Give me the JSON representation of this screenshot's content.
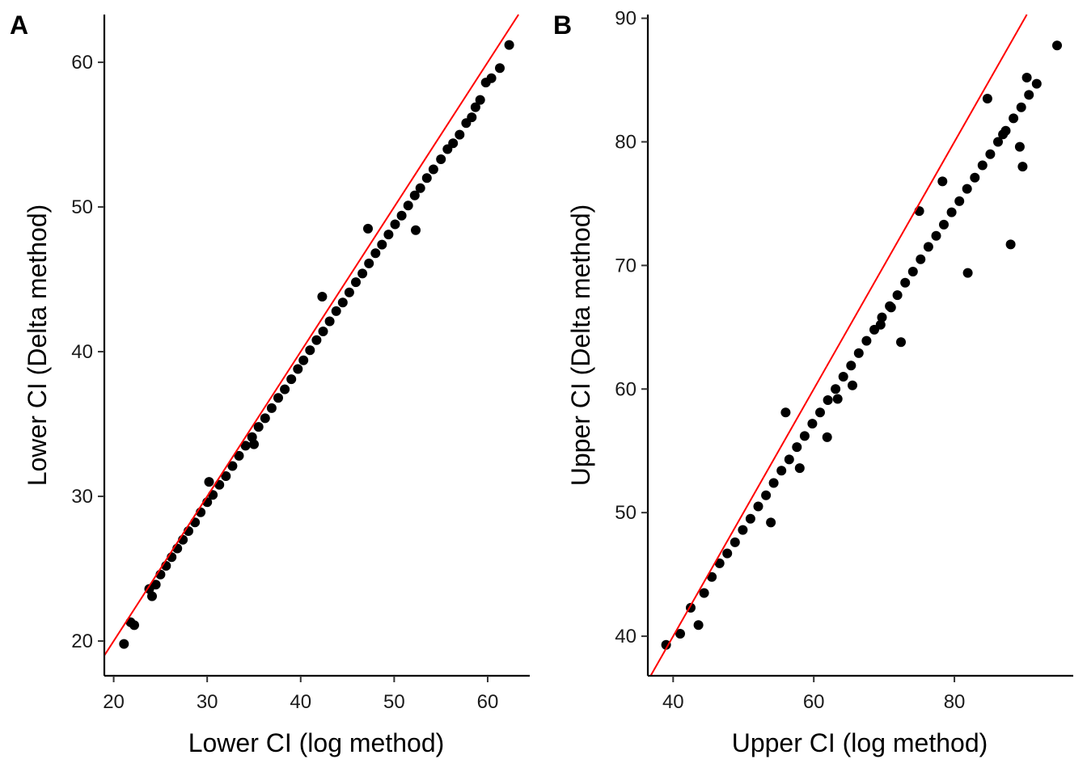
{
  "chart_data": [
    {
      "type": "scatter",
      "panel_label": "A",
      "xlabel": "Lower CI (log method)",
      "ylabel": "Lower CI (Delta method)",
      "xlim": [
        19,
        64.5
      ],
      "ylim": [
        17.6,
        63.3
      ],
      "xticks": [
        20,
        30,
        40,
        50,
        60
      ],
      "yticks": [
        20,
        30,
        40,
        50,
        60
      ],
      "reference_line": {
        "slope": 1,
        "intercept": 0,
        "color": "#ff0000"
      },
      "point_color": "#000000",
      "series": [
        {
          "x": [
            21.1,
            21.8,
            22.2,
            23.8,
            24.1,
            24.5,
            25.0,
            25.6,
            26.2,
            26.8,
            27.4,
            28.0,
            28.7,
            29.3,
            30.0,
            30.6,
            31.3,
            32.0,
            32.7,
            33.4,
            34.1,
            34.8,
            35.5,
            36.2,
            36.9,
            37.6,
            38.3,
            39.0,
            39.7,
            40.3,
            41.0,
            41.7,
            42.4,
            43.1,
            43.8,
            44.5,
            45.2,
            45.9,
            46.6,
            47.3,
            48.0,
            48.7,
            49.4,
            50.1,
            50.8,
            51.5,
            52.2,
            52.8,
            53.5,
            54.2,
            55.0,
            55.7,
            56.3,
            57.0,
            57.7,
            58.3,
            58.7,
            59.2,
            59.8,
            60.4,
            61.3,
            62.3,
            42.3,
            52.3,
            47.2,
            35.0,
            30.2
          ],
          "y": [
            19.8,
            21.3,
            21.1,
            23.6,
            23.1,
            23.9,
            24.6,
            25.2,
            25.8,
            26.4,
            27.0,
            27.6,
            28.2,
            28.9,
            29.6,
            30.1,
            30.8,
            31.4,
            32.1,
            32.8,
            33.5,
            34.1,
            34.8,
            35.4,
            36.1,
            36.8,
            37.4,
            38.1,
            38.8,
            39.4,
            40.1,
            40.8,
            41.4,
            42.1,
            42.8,
            43.4,
            44.1,
            44.8,
            45.4,
            46.1,
            46.8,
            47.4,
            48.1,
            48.8,
            49.4,
            50.1,
            50.8,
            51.3,
            52.0,
            52.6,
            53.3,
            54.0,
            54.4,
            55.0,
            55.8,
            56.2,
            56.9,
            57.4,
            58.6,
            58.9,
            59.6,
            61.2,
            43.8,
            48.4,
            48.5,
            33.6,
            31.0
          ]
        }
      ]
    },
    {
      "type": "scatter",
      "panel_label": "B",
      "xlabel": "Upper CI (log method)",
      "ylabel": "Upper CI (Delta method)",
      "xlim": [
        36.4,
        96.9
      ],
      "ylim": [
        36.8,
        90.3
      ],
      "xticks": [
        40,
        60,
        80
      ],
      "yticks": [
        40,
        50,
        60,
        70,
        80,
        90
      ],
      "reference_line": {
        "slope": 1,
        "intercept": 0,
        "color": "#ff0000"
      },
      "point_color": "#000000",
      "series": [
        {
          "x": [
            39.0,
            41.0,
            43.6,
            42.5,
            44.4,
            45.5,
            46.6,
            47.7,
            48.8,
            49.9,
            51.0,
            52.1,
            53.2,
            54.3,
            55.4,
            56.5,
            57.6,
            58.7,
            59.8,
            60.9,
            62.0,
            63.1,
            64.2,
            65.3,
            66.4,
            67.5,
            68.6,
            69.7,
            70.8,
            71.9,
            73.0,
            74.1,
            75.2,
            76.3,
            77.4,
            78.5,
            79.6,
            80.7,
            81.8,
            82.9,
            84.0,
            85.1,
            86.2,
            87.3,
            88.4,
            89.5,
            90.6,
            91.7,
            89.7,
            89.3,
            90.3,
            94.6,
            88.0,
            81.9,
            69.5,
            72.4,
            56.0,
            78.3,
            75.0,
            63.4,
            53.9,
            61.9,
            65.5,
            71.0,
            58.0,
            84.7,
            86.9
          ],
          "y": [
            39.3,
            40.2,
            40.9,
            42.3,
            43.5,
            44.8,
            45.9,
            46.7,
            47.6,
            48.6,
            49.5,
            50.5,
            51.4,
            52.4,
            53.4,
            54.3,
            55.3,
            56.2,
            57.2,
            58.1,
            59.1,
            60.0,
            61.0,
            61.9,
            62.9,
            63.9,
            64.8,
            65.8,
            66.7,
            67.6,
            68.6,
            69.5,
            70.5,
            71.5,
            72.4,
            73.3,
            74.3,
            75.2,
            76.2,
            77.1,
            78.1,
            79.0,
            80.0,
            80.9,
            81.9,
            82.8,
            83.8,
            84.7,
            78.0,
            79.6,
            85.2,
            87.8,
            71.7,
            69.4,
            65.2,
            63.8,
            58.1,
            76.8,
            74.4,
            59.2,
            49.2,
            56.1,
            60.3,
            66.6,
            53.6,
            83.5,
            80.6
          ]
        }
      ]
    }
  ]
}
